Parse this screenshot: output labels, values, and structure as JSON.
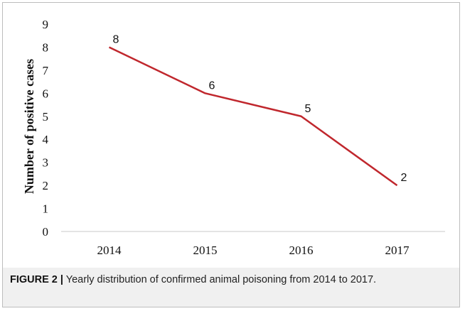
{
  "chart_data": {
    "type": "line",
    "categories": [
      "2014",
      "2015",
      "2016",
      "2017"
    ],
    "series": [
      {
        "values": [
          8,
          6,
          5,
          2
        ]
      }
    ],
    "data_labels": [
      "8",
      "6",
      "5",
      "2"
    ],
    "ylabel": "Number of positive cases",
    "xlabel": "",
    "ylim": [
      0,
      9
    ],
    "yticks": [
      "0",
      "1",
      "2",
      "3",
      "4",
      "5",
      "6",
      "7",
      "8",
      "9"
    ],
    "grid": false,
    "line_color": "#c0272d"
  },
  "caption": {
    "label": "FIGURE 2 |",
    "text": " Yearly distribution of confirmed animal poisoning from 2014 to 2017."
  }
}
